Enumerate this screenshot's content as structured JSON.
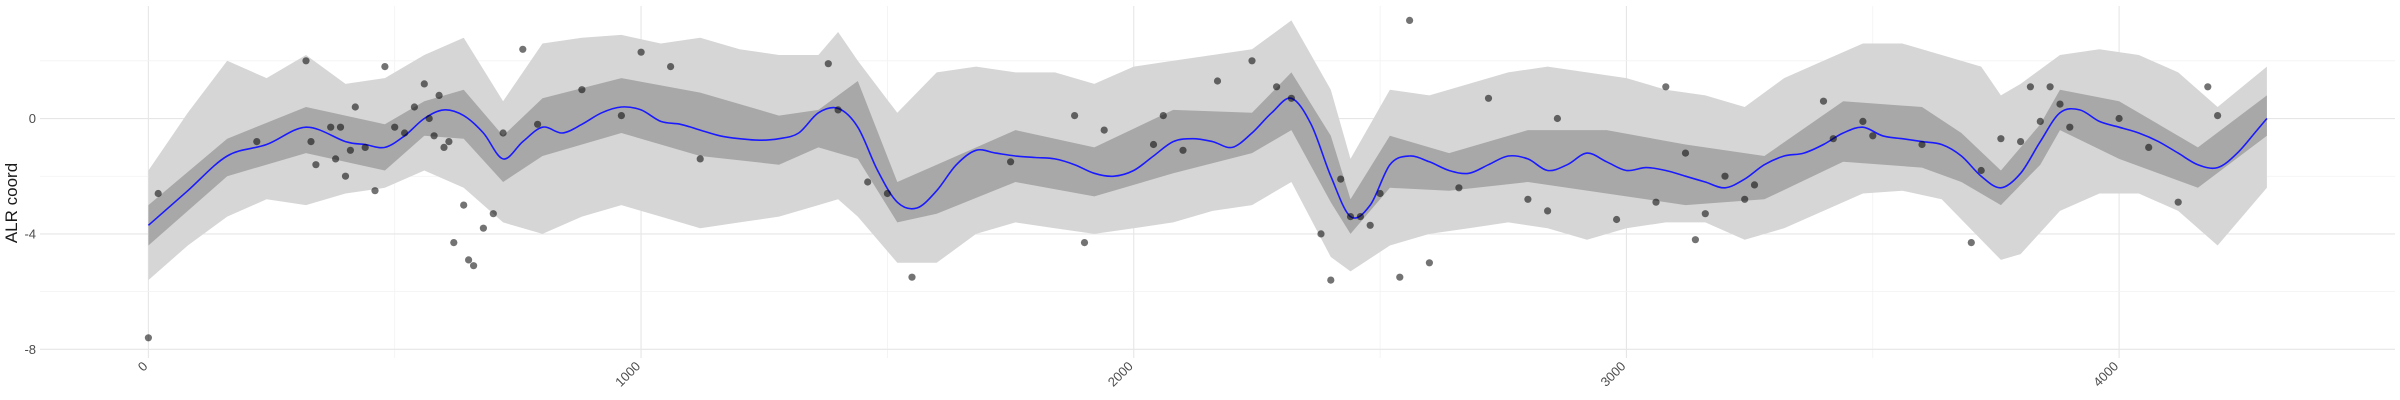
{
  "chart_data": {
    "type": "line",
    "title": "",
    "xlabel": "",
    "ylabel": "ALR coord",
    "xlim": [
      -220,
      4560
    ],
    "ylim": [
      -8.3,
      3.9
    ],
    "x_ticks": [
      0,
      1000,
      2000,
      3000,
      4000
    ],
    "x_tick_labels": [
      "0",
      "1000",
      "2000",
      "3000",
      "4000"
    ],
    "y_ticks": [
      -8,
      -4,
      0
    ],
    "y_tick_labels": [
      "-8",
      "-4",
      "0"
    ],
    "grid": true,
    "legend": "none",
    "colors": {
      "line": "#1a1aff",
      "inner_band": "#a8a8a8",
      "outer_band": "#d6d6d6",
      "points": "#000000"
    },
    "series": [
      {
        "type": "line",
        "x": [
          0,
          80,
          160,
          240,
          320,
          400,
          440,
          480,
          520,
          560,
          600,
          640,
          680,
          720,
          760,
          800,
          840,
          880,
          920,
          960,
          1000,
          1040,
          1080,
          1120,
          1160,
          1200,
          1240,
          1280,
          1320,
          1360,
          1400,
          1440,
          1480,
          1520,
          1560,
          1600,
          1640,
          1680,
          1720,
          1760,
          1800,
          1840,
          1880,
          1920,
          1960,
          2000,
          2040,
          2080,
          2120,
          2160,
          2200,
          2240,
          2280,
          2320,
          2360,
          2400,
          2440,
          2480,
          2520,
          2560,
          2600,
          2640,
          2680,
          2720,
          2760,
          2800,
          2840,
          2880,
          2920,
          2960,
          3000,
          3040,
          3080,
          3120,
          3160,
          3200,
          3240,
          3280,
          3320,
          3360,
          3400,
          3440,
          3480,
          3520,
          3560,
          3600,
          3640,
          3680,
          3720,
          3760,
          3800,
          3840,
          3880,
          3920,
          3960,
          4000,
          4040,
          4080,
          4120,
          4160,
          4200,
          4240,
          4280,
          4300
        ],
        "y": [
          -3.7,
          -2.5,
          -1.3,
          -0.9,
          -0.3,
          -0.8,
          -0.9,
          -1.0,
          -0.6,
          0.0,
          0.3,
          0.1,
          -0.5,
          -1.4,
          -0.8,
          -0.3,
          -0.5,
          -0.2,
          0.2,
          0.4,
          0.3,
          -0.1,
          -0.2,
          -0.4,
          -0.6,
          -0.7,
          -0.75,
          -0.7,
          -0.5,
          0.2,
          0.35,
          -0.3,
          -1.8,
          -2.9,
          -3.1,
          -2.5,
          -1.6,
          -1.1,
          -1.2,
          -1.3,
          -1.35,
          -1.4,
          -1.6,
          -1.9,
          -2.0,
          -1.8,
          -1.3,
          -0.8,
          -0.7,
          -0.8,
          -1.0,
          -0.5,
          0.2,
          0.7,
          -0.2,
          -2.0,
          -3.4,
          -3.0,
          -1.6,
          -1.3,
          -1.5,
          -1.8,
          -1.9,
          -1.6,
          -1.3,
          -1.4,
          -1.8,
          -1.6,
          -1.2,
          -1.5,
          -1.8,
          -1.7,
          -1.8,
          -2.0,
          -2.2,
          -2.4,
          -2.1,
          -1.6,
          -1.3,
          -1.2,
          -0.9,
          -0.5,
          -0.3,
          -0.6,
          -0.7,
          -0.8,
          -0.9,
          -1.3,
          -2.0,
          -2.4,
          -1.9,
          -0.8,
          0.2,
          0.3,
          -0.1,
          -0.3,
          -0.5,
          -0.8,
          -1.2,
          -1.6,
          -1.7,
          -1.2,
          -0.4,
          0.0
        ]
      },
      {
        "type": "band",
        "name_hint": "inner",
        "x": [
          0,
          160,
          320,
          480,
          560,
          640,
          720,
          800,
          960,
          1120,
          1280,
          1360,
          1440,
          1520,
          1600,
          1760,
          1920,
          2080,
          2240,
          2320,
          2400,
          2440,
          2520,
          2640,
          2800,
          2960,
          3120,
          3280,
          3440,
          3600,
          3680,
          3760,
          3840,
          3880,
          4000,
          4160,
          4300
        ],
        "lower": [
          -4.4,
          -2.0,
          -1.2,
          -1.8,
          -0.6,
          -0.7,
          -2.2,
          -1.3,
          -0.5,
          -1.3,
          -1.6,
          -1.0,
          -1.4,
          -3.6,
          -3.3,
          -2.2,
          -2.7,
          -1.9,
          -1.2,
          -0.4,
          -2.9,
          -4.0,
          -2.4,
          -2.5,
          -2.2,
          -2.6,
          -3.0,
          -2.8,
          -1.5,
          -1.7,
          -2.2,
          -3.0,
          -1.6,
          -0.4,
          -1.4,
          -2.4,
          -0.6
        ],
        "upper": [
          -3.0,
          -0.7,
          0.4,
          -0.2,
          0.6,
          1.0,
          -0.6,
          0.7,
          1.4,
          0.9,
          0.1,
          0.3,
          1.3,
          -2.2,
          -1.6,
          -0.4,
          -1.0,
          0.3,
          0.2,
          1.6,
          -0.6,
          -2.8,
          -0.6,
          -1.2,
          -0.4,
          -0.4,
          -0.9,
          -1.3,
          0.6,
          0.4,
          -0.5,
          -1.8,
          -0.2,
          1.0,
          0.6,
          -1.0,
          0.8
        ]
      },
      {
        "type": "band",
        "name_hint": "outer",
        "x": [
          0,
          80,
          160,
          240,
          320,
          400,
          480,
          560,
          640,
          720,
          800,
          880,
          960,
          1040,
          1120,
          1200,
          1280,
          1360,
          1400,
          1440,
          1520,
          1600,
          1680,
          1760,
          1840,
          1920,
          2000,
          2080,
          2160,
          2240,
          2320,
          2400,
          2440,
          2520,
          2600,
          2680,
          2760,
          2840,
          2920,
          3000,
          3080,
          3160,
          3240,
          3320,
          3400,
          3480,
          3560,
          3640,
          3720,
          3760,
          3800,
          3880,
          3960,
          4040,
          4120,
          4200,
          4300
        ],
        "lower": [
          -5.6,
          -4.4,
          -3.4,
          -2.8,
          -3.0,
          -2.6,
          -2.4,
          -1.8,
          -2.4,
          -3.6,
          -4.0,
          -3.4,
          -3.0,
          -3.4,
          -3.8,
          -3.6,
          -3.4,
          -3.0,
          -2.8,
          -3.4,
          -5.0,
          -5.0,
          -4.0,
          -3.6,
          -3.8,
          -4.0,
          -3.8,
          -3.6,
          -3.2,
          -3.0,
          -2.2,
          -4.8,
          -5.3,
          -4.4,
          -4.0,
          -3.8,
          -3.6,
          -3.8,
          -4.2,
          -3.8,
          -3.6,
          -3.6,
          -4.2,
          -3.8,
          -3.2,
          -2.6,
          -2.5,
          -2.8,
          -4.2,
          -4.9,
          -4.7,
          -3.2,
          -2.6,
          -2.6,
          -3.2,
          -4.4,
          -2.4
        ],
        "upper": [
          -1.8,
          0.2,
          2.0,
          1.4,
          2.2,
          1.2,
          1.4,
          2.2,
          2.8,
          0.6,
          2.6,
          2.8,
          2.9,
          2.6,
          2.8,
          2.4,
          2.2,
          2.2,
          3.0,
          2.0,
          0.2,
          1.6,
          1.8,
          1.6,
          1.6,
          1.2,
          1.8,
          2.0,
          2.2,
          2.4,
          3.4,
          1.0,
          -1.4,
          1.0,
          0.8,
          1.2,
          1.6,
          1.8,
          1.6,
          1.4,
          1.0,
          0.8,
          0.4,
          1.4,
          2.0,
          2.6,
          2.6,
          2.2,
          1.8,
          0.8,
          1.2,
          2.2,
          2.4,
          2.2,
          1.6,
          0.4,
          1.8
        ]
      },
      {
        "type": "scatter",
        "x": [
          0,
          20,
          220,
          320,
          330,
          340,
          370,
          380,
          390,
          400,
          410,
          420,
          440,
          460,
          480,
          500,
          520,
          540,
          560,
          570,
          580,
          590,
          600,
          610,
          620,
          640,
          650,
          660,
          680,
          700,
          720,
          760,
          790,
          880,
          960,
          1000,
          1060,
          1120,
          1380,
          1400,
          1460,
          1500,
          1550,
          1750,
          1880,
          1900,
          1940,
          2040,
          2060,
          2100,
          2170,
          2240,
          2290,
          2320,
          2380,
          2400,
          2420,
          2440,
          2460,
          2480,
          2500,
          2540,
          2560,
          2600,
          2660,
          2720,
          2800,
          2840,
          2860,
          2980,
          3060,
          3080,
          3120,
          3140,
          3160,
          3200,
          3240,
          3260,
          3400,
          3420,
          3480,
          3500,
          3600,
          3700,
          3720,
          3760,
          3800,
          3820,
          3840,
          3860,
          3880,
          3900,
          4000,
          4060,
          4120,
          4180,
          4200
        ],
        "y": [
          -7.6,
          -2.6,
          -0.8,
          2.0,
          -0.8,
          -1.6,
          -0.3,
          -1.4,
          -0.3,
          -2.0,
          -1.1,
          0.4,
          -1.0,
          -2.5,
          1.8,
          -0.3,
          -0.5,
          0.4,
          1.2,
          0.0,
          -0.6,
          0.8,
          -1.0,
          -0.8,
          -4.3,
          -3.0,
          -4.9,
          -5.1,
          -3.8,
          -3.3,
          -0.5,
          2.4,
          -0.2,
          1.0,
          0.1,
          2.3,
          1.8,
          -1.4,
          1.9,
          0.3,
          -2.2,
          -2.6,
          -5.5,
          -1.5,
          0.1,
          -4.3,
          -0.4,
          -0.9,
          0.1,
          -1.1,
          1.3,
          2.0,
          1.1,
          0.7,
          -4.0,
          -5.6,
          -2.1,
          -3.4,
          -3.4,
          -3.7,
          -2.6,
          -5.5,
          3.4,
          -5.0,
          -2.4,
          0.7,
          -2.8,
          -3.2,
          0.0,
          -3.5,
          -2.9,
          1.1,
          -1.2,
          -4.2,
          -3.3,
          -2.0,
          -2.8,
          -2.3,
          0.6,
          -0.7,
          -0.1,
          -0.6,
          -0.9,
          -4.3,
          -1.8,
          -0.7,
          -0.8,
          1.1,
          -0.1,
          1.1,
          0.5,
          -0.3,
          0.0,
          -1.0,
          -2.9,
          1.1,
          0.1
        ]
      }
    ]
  }
}
